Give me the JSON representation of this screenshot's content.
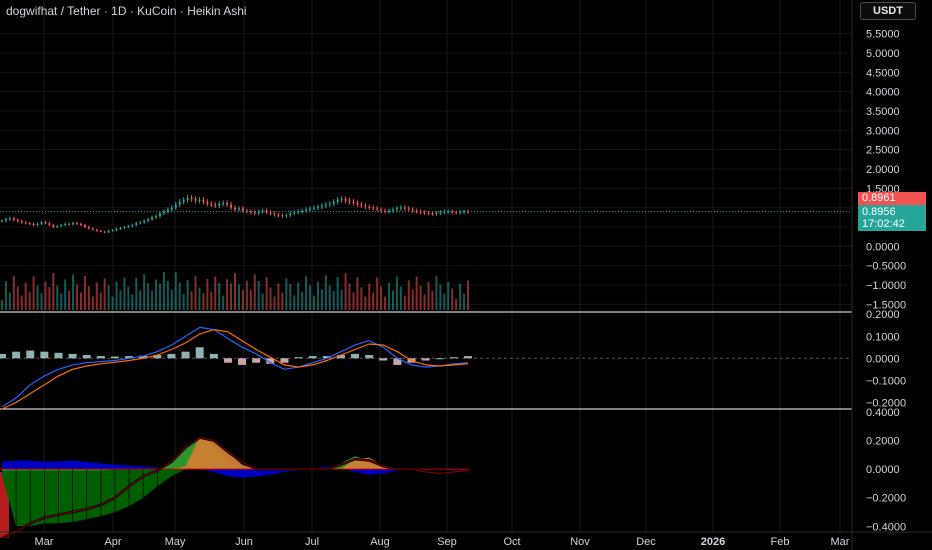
{
  "header": {
    "title": "dogwifhat / Tether · 1D · KuCoin · Heikin Ashi",
    "currency_button": "USDT"
  },
  "price_tags": {
    "last_price": "0.8961",
    "close_price": "0.8956",
    "countdown": "17:02:42"
  },
  "colors": {
    "background": "#000000",
    "up": "#26a69a",
    "down": "#ef5350",
    "macd_line": "#2962ff",
    "signal_line": "#ff6d00",
    "divider": "#ffffff",
    "indicator_green": "#006400",
    "indicator_orange": "#cd7f32",
    "indicator_blue": "#0000cd"
  },
  "chart_data": [
    {
      "type": "candlestick",
      "title": "dogwifhat / Tether · 1D · KuCoin · Heikin Ashi",
      "y_ticks": [
        "5.5000",
        "5.0000",
        "4.5000",
        "4.0000",
        "3.5000",
        "3.0000",
        "2.5000",
        "2.0000",
        "1.5000",
        "1.0000",
        "0.5000",
        "0.0000",
        "−0.5000",
        "−1.0000",
        "−1.5000"
      ],
      "ylim": [
        -1.7,
        5.75
      ],
      "x_ticks": [
        "Mar",
        "Apr",
        "May",
        "Jun",
        "Jul",
        "Aug",
        "Sep",
        "Oct",
        "Nov",
        "Dec",
        "2026",
        "Feb",
        "Mar"
      ],
      "close_series": [
        {
          "month": "Feb",
          "values": [
            0.66,
            0.7,
            0.72,
            0.68,
            0.65,
            0.62
          ]
        },
        {
          "month": "Mar",
          "values": [
            0.6,
            0.58,
            0.55,
            0.58,
            0.62,
            0.6,
            0.55,
            0.5,
            0.52,
            0.55,
            0.58,
            0.57,
            0.6
          ]
        },
        {
          "month": "Apr",
          "values": [
            0.58,
            0.55,
            0.5,
            0.46,
            0.43,
            0.4,
            0.38,
            0.36,
            0.4,
            0.42,
            0.45,
            0.48,
            0.5,
            0.52,
            0.55,
            0.6,
            0.62,
            0.66,
            0.7
          ]
        },
        {
          "month": "May",
          "values": [
            0.75,
            0.78,
            0.85,
            0.9,
            0.95,
            1.0,
            1.08,
            1.15,
            1.2,
            1.25,
            1.22,
            1.18,
            1.2,
            1.15,
            1.1,
            1.08,
            1.05,
            1.1,
            1.12
          ]
        },
        {
          "month": "Jun",
          "values": [
            1.08,
            1.0,
            0.95,
            0.98,
            0.92,
            0.9,
            0.88,
            0.85,
            0.9,
            0.92,
            0.88,
            0.85,
            0.82,
            0.8,
            0.78,
            0.8,
            0.85,
            0.88,
            0.9
          ]
        },
        {
          "month": "Jul",
          "values": [
            0.92,
            0.95,
            0.98,
            1.0,
            1.02,
            1.05,
            1.08,
            1.1,
            1.15,
            1.2,
            1.22,
            1.18,
            1.15,
            1.12,
            1.08,
            1.05,
            1.02,
            1.0,
            0.98
          ]
        },
        {
          "month": "Aug",
          "values": [
            0.95,
            0.92,
            0.9,
            0.92,
            0.95,
            0.98,
            1.0,
            0.98,
            0.95,
            0.92,
            0.9,
            0.88,
            0.86,
            0.85,
            0.84,
            0.86,
            0.88,
            0.9,
            0.9
          ]
        },
        {
          "month": "Sep",
          "values": [
            0.88,
            0.87,
            0.89,
            0.9,
            0.8956
          ]
        }
      ],
      "last_price": 0.8961,
      "close_price": 0.8956,
      "volume": "relative bars along bottom of price pane"
    },
    {
      "type": "line",
      "title": "",
      "y_ticks": [
        "0.2000",
        "0.1000",
        "0.0000",
        "−0.1000",
        "−0.2000"
      ],
      "ylim": [
        -0.23,
        0.21
      ],
      "series": [
        {
          "values": [
            -0.22,
            -0.18,
            -0.12,
            -0.08,
            -0.05,
            -0.03,
            -0.02,
            -0.015,
            -0.01,
            0.0,
            0.01,
            0.03,
            0.06,
            0.1,
            0.14,
            0.13,
            0.09,
            0.05,
            0.02,
            -0.02,
            -0.05,
            -0.04,
            -0.02,
            0.0,
            0.03,
            0.06,
            0.08,
            0.05,
            0.0,
            -0.03,
            -0.04,
            -0.035,
            -0.025,
            -0.02
          ]
        },
        {
          "values": [
            -0.23,
            -0.2,
            -0.16,
            -0.12,
            -0.08,
            -0.05,
            -0.035,
            -0.025,
            -0.018,
            -0.01,
            0.0,
            0.015,
            0.04,
            0.07,
            0.11,
            0.13,
            0.12,
            0.08,
            0.04,
            0.005,
            -0.03,
            -0.04,
            -0.03,
            -0.01,
            0.015,
            0.04,
            0.065,
            0.06,
            0.03,
            -0.01,
            -0.03,
            -0.035,
            -0.03,
            -0.025
          ]
        }
      ],
      "histogram": [
        0.02,
        0.03,
        0.035,
        0.03,
        0.025,
        0.02,
        0.015,
        0.01,
        0.008,
        0.01,
        0.012,
        0.015,
        0.02,
        0.03,
        0.05,
        0.02,
        -0.02,
        -0.03,
        -0.02,
        -0.025,
        -0.02,
        0.005,
        0.01,
        0.01,
        0.015,
        0.02,
        0.015,
        -0.01,
        -0.03,
        -0.02,
        -0.01,
        0.0,
        0.005,
        0.01
      ]
    },
    {
      "type": "area",
      "title": "",
      "y_ticks": [
        "0.4000",
        "0.2000",
        "0.0000",
        "−0.2000",
        "−0.4000"
      ],
      "ylim": [
        -0.44,
        0.42
      ],
      "bands": {
        "green": [
          -0.01,
          -0.01,
          -0.01,
          -0.01,
          -0.01,
          -0.01,
          -0.01,
          -0.01,
          0.0,
          0.0,
          0.0,
          0.0,
          0.05,
          0.15,
          0.23,
          0.16,
          0.05,
          0.0,
          0.0,
          0.0,
          0.0,
          0.0,
          0.0,
          0.0,
          0.04,
          0.09,
          0.06,
          0.02,
          0.0,
          0.0,
          0.0,
          0.0,
          0.0,
          0.0
        ],
        "orange": [
          0,
          0,
          0,
          0,
          0,
          0,
          0,
          0,
          0,
          0,
          0,
          0,
          0,
          0.02,
          0.23,
          0.2,
          0.12,
          0.03,
          0,
          0,
          0,
          0,
          0,
          0,
          0,
          0.07,
          0.08,
          0.02,
          0,
          0,
          0,
          0,
          0,
          0
        ],
        "blue": [
          0.05,
          0.06,
          0.06,
          0.05,
          0.055,
          0.06,
          0.05,
          0.04,
          0.03,
          0.025,
          0.02,
          0.01,
          0.0,
          0.0,
          0.0,
          -0.02,
          -0.05,
          -0.06,
          -0.05,
          -0.04,
          -0.02,
          -0.01,
          0.0,
          0.02,
          0.01,
          -0.02,
          -0.04,
          -0.03,
          -0.01,
          0.0,
          0.0,
          0.0,
          -0.01,
          -0.01
        ],
        "deep_negative": [
          -0.05,
          -0.4,
          -0.4,
          -0.38,
          -0.38,
          -0.37,
          -0.35,
          -0.33,
          -0.3,
          -0.26,
          -0.2,
          -0.12,
          -0.05,
          0.0,
          0,
          0,
          0,
          0,
          0,
          0,
          0,
          0,
          0,
          0,
          0,
          0,
          0,
          0,
          0,
          0,
          0,
          0,
          0,
          0
        ]
      },
      "line": [
        -0.48,
        -0.44,
        -0.38,
        -0.34,
        -0.32,
        -0.3,
        -0.28,
        -0.25,
        -0.2,
        -0.12,
        -0.05,
        -0.01,
        0.05,
        0.15,
        0.22,
        0.2,
        0.12,
        0.05,
        0.0,
        0.0,
        0.0,
        0.0,
        0.0,
        0.0,
        0.03,
        0.07,
        0.06,
        0.02,
        0.0,
        0.0,
        -0.02,
        -0.03,
        -0.02,
        -0.01
      ]
    }
  ]
}
